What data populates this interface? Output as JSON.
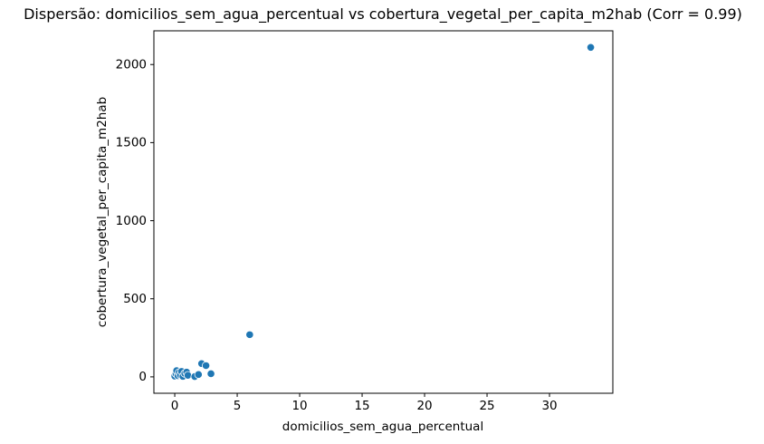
{
  "chart_data": {
    "type": "scatter",
    "title": "Dispersão: domicilios_sem_agua_percentual vs cobertura_vegetal_per_capita_m2hab (Corr = 0.99)",
    "xlabel": "domicilios_sem_agua_percentual",
    "ylabel": "cobertura_vegetal_per_capita_m2hab",
    "correlation": 0.99,
    "xlim": [
      -1.67,
      35.07
    ],
    "ylim": [
      -105,
      2216
    ],
    "x_ticks": [
      0,
      5,
      10,
      15,
      20,
      25,
      30
    ],
    "y_ticks": [
      0,
      500,
      1000,
      1500,
      2000
    ],
    "grid": false,
    "legend": "none",
    "marker_color": "#1f77b4",
    "marker_edge_color": "#ffffff",
    "frame_color": "#000000",
    "points": [
      [
        0.0,
        5
      ],
      [
        0.1,
        20
      ],
      [
        0.15,
        40
      ],
      [
        0.25,
        8
      ],
      [
        0.35,
        28
      ],
      [
        0.45,
        12
      ],
      [
        0.55,
        35
      ],
      [
        0.65,
        3
      ],
      [
        0.8,
        22
      ],
      [
        0.95,
        30
      ],
      [
        1.05,
        10
      ],
      [
        1.6,
        2
      ],
      [
        1.9,
        15
      ],
      [
        2.15,
        85
      ],
      [
        2.5,
        72
      ],
      [
        2.9,
        20
      ],
      [
        6.0,
        270
      ],
      [
        33.3,
        2110
      ]
    ]
  }
}
